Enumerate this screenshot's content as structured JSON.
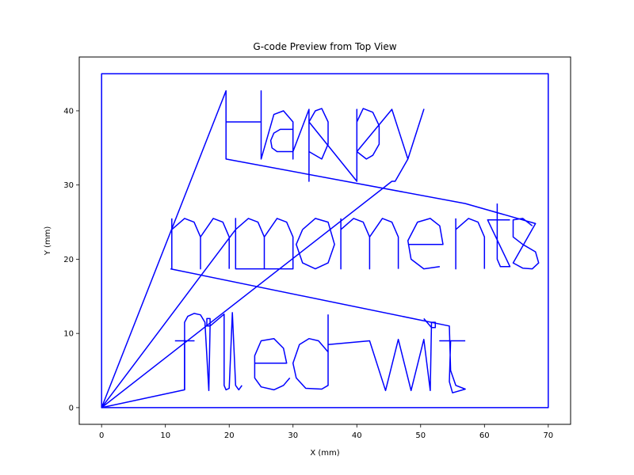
{
  "chart_data": {
    "type": "line",
    "title": "G-code Preview from Top View",
    "xlabel": "X (mm)",
    "ylabel": "Y (mm)",
    "xlim": [
      -3.5,
      73.5
    ],
    "ylim": [
      -2.25,
      47.25
    ],
    "xticks": [
      0,
      10,
      20,
      30,
      40,
      50,
      60,
      70
    ],
    "yticks": [
      0,
      10,
      20,
      30,
      40
    ],
    "grid": false,
    "legend": "none",
    "color": "#0000ff",
    "series": [
      {
        "values": [
          [
            0,
            0
          ],
          [
            0,
            45
          ],
          [
            70,
            45
          ],
          [
            70,
            0
          ],
          [
            0,
            0
          ],
          [
            19.5,
            42.7
          ],
          [
            19.5,
            33.5
          ],
          [
            19.5,
            38.5
          ],
          [
            25.0,
            38.5
          ],
          [
            25.0,
            42.7
          ],
          [
            25.0,
            33.5
          ],
          [
            27.0,
            39.5
          ],
          [
            28.5,
            40.0
          ],
          [
            30.0,
            38.5
          ],
          [
            30.0,
            33.5
          ],
          [
            30.0,
            37.5
          ],
          [
            28.0,
            37.5
          ],
          [
            27.0,
            37.0
          ],
          [
            26.5,
            36.0
          ],
          [
            26.7,
            35.0
          ],
          [
            27.5,
            34.5
          ],
          [
            30.0,
            34.5
          ],
          [
            32.5,
            40.2
          ],
          [
            32.5,
            30.5
          ],
          [
            32.5,
            34.5
          ],
          [
            34.5,
            33.5
          ],
          [
            35.5,
            35.5
          ],
          [
            35.5,
            38.5
          ],
          [
            34.5,
            40.3
          ],
          [
            33.5,
            40.0
          ],
          [
            32.5,
            38.5
          ],
          [
            40.0,
            30.5
          ],
          [
            40.0,
            40.2
          ],
          [
            40.0,
            38.5
          ],
          [
            41.0,
            40.3
          ],
          [
            42.5,
            39.8
          ],
          [
            43.5,
            38.0
          ],
          [
            43.5,
            35.5
          ],
          [
            42.5,
            34.0
          ],
          [
            41.5,
            33.5
          ],
          [
            40.0,
            34.5
          ],
          [
            45.5,
            40.2
          ],
          [
            48.0,
            33.5
          ],
          [
            50.5,
            40.2
          ],
          [
            48.0,
            33.5
          ],
          [
            46.0,
            30.5
          ],
          [
            45.5,
            30.5
          ],
          [
            0,
            0
          ],
          [
            21.0,
            24.0
          ],
          [
            23.0,
            25.5
          ],
          [
            24.5,
            25.0
          ],
          [
            25.5,
            23.0
          ],
          [
            25.5,
            18.7
          ],
          [
            25.5,
            23.0
          ],
          [
            27.5,
            25.5
          ],
          [
            29.0,
            25.0
          ],
          [
            30.0,
            23.0
          ],
          [
            30.0,
            18.7
          ],
          [
            21.0,
            18.7
          ],
          [
            21.0,
            25.5
          ],
          [
            21.0,
            18.7
          ]
        ]
      },
      {
        "values": [
          [
            11.0,
            25.5
          ],
          [
            11.0,
            18.7
          ],
          [
            11.0,
            24.0
          ],
          [
            13.0,
            25.5
          ],
          [
            14.5,
            25.0
          ],
          [
            15.5,
            23.0
          ],
          [
            15.5,
            18.7
          ],
          [
            15.5,
            23.0
          ],
          [
            17.5,
            25.5
          ],
          [
            19.0,
            25.0
          ],
          [
            20.0,
            23.0
          ],
          [
            20.0,
            18.7
          ]
        ]
      },
      {
        "values": [
          [
            31.5,
            24.0
          ],
          [
            33.5,
            25.5
          ],
          [
            35.5,
            25.0
          ],
          [
            36.5,
            22.0
          ],
          [
            35.5,
            19.5
          ],
          [
            33.5,
            18.7
          ],
          [
            31.5,
            19.5
          ],
          [
            30.5,
            22.0
          ],
          [
            31.5,
            24.0
          ]
        ]
      },
      {
        "values": [
          [
            37.5,
            25.5
          ],
          [
            37.5,
            18.7
          ],
          [
            37.5,
            24.0
          ],
          [
            39.5,
            25.5
          ],
          [
            41.0,
            25.0
          ],
          [
            42.0,
            23.0
          ],
          [
            42.0,
            18.7
          ],
          [
            42.0,
            23.0
          ],
          [
            44.0,
            25.5
          ],
          [
            45.5,
            25.0
          ],
          [
            46.5,
            23.0
          ],
          [
            46.5,
            18.7
          ]
        ]
      },
      {
        "values": [
          [
            48.0,
            22.0
          ],
          [
            53.5,
            22.0
          ],
          [
            53.0,
            24.5
          ],
          [
            51.5,
            25.5
          ],
          [
            49.5,
            25.0
          ],
          [
            48.0,
            22.5
          ],
          [
            48.5,
            20.0
          ],
          [
            50.5,
            18.7
          ],
          [
            53.0,
            19.0
          ]
        ]
      },
      {
        "values": [
          [
            55.5,
            25.5
          ],
          [
            55.5,
            18.7
          ],
          [
            55.5,
            24.0
          ],
          [
            57.5,
            25.5
          ],
          [
            59.0,
            25.0
          ],
          [
            60.0,
            23.0
          ],
          [
            60.0,
            18.7
          ]
        ]
      },
      {
        "values": [
          [
            62.0,
            27.5
          ],
          [
            62.0,
            20.0
          ],
          [
            62.5,
            19.0
          ],
          [
            64.0,
            19.0
          ],
          [
            60.5,
            25.3
          ],
          [
            64.0,
            25.3
          ]
        ]
      },
      {
        "values": [
          [
            67.5,
            24.5
          ],
          [
            66.0,
            25.5
          ],
          [
            64.5,
            25.3
          ],
          [
            64.5,
            23.0
          ],
          [
            66.0,
            22.0
          ],
          [
            68.0,
            21.0
          ],
          [
            68.5,
            19.5
          ],
          [
            67.5,
            18.7
          ],
          [
            66.0,
            18.8
          ],
          [
            64.5,
            19.5
          ],
          [
            68.0,
            24.8
          ],
          [
            57.0,
            27.5
          ],
          [
            19.5,
            33.5
          ]
        ]
      },
      {
        "values": [
          [
            10.8,
            18.7
          ],
          [
            54.5,
            11.0
          ],
          [
            54.7,
            5.0
          ],
          [
            55.5,
            3.0
          ],
          [
            57.0,
            2.5
          ],
          [
            55.0,
            2.0
          ],
          [
            54.5,
            3.5
          ],
          [
            54.7,
            9.0
          ],
          [
            53.0,
            9.0
          ],
          [
            57.0,
            9.0
          ]
        ]
      },
      {
        "values": [
          [
            13.0,
            2.4
          ],
          [
            13.0,
            11.5
          ],
          [
            13.5,
            12.3
          ],
          [
            14.5,
            12.7
          ],
          [
            15.5,
            12.5
          ],
          [
            16.2,
            11.5
          ],
          [
            16.8,
            2.3
          ],
          [
            17.0,
            11.0
          ],
          [
            17.0,
            12.0
          ],
          [
            16.5,
            12.0
          ],
          [
            16.5,
            11.0
          ],
          [
            17.0,
            11.0
          ],
          [
            19.2,
            12.6
          ],
          [
            19.2,
            3.0
          ],
          [
            19.5,
            2.4
          ],
          [
            20.0,
            2.6
          ],
          [
            20.5,
            12.8
          ],
          [
            21.0,
            3.0
          ],
          [
            21.5,
            2.4
          ],
          [
            22.0,
            3.0
          ]
        ]
      },
      {
        "values": [
          [
            11.5,
            9.0
          ],
          [
            14.5,
            9.0
          ],
          [
            13.0,
            9.0
          ],
          [
            13.0,
            2.4
          ],
          [
            0,
            0
          ]
        ]
      },
      {
        "values": [
          [
            24.0,
            6.0
          ],
          [
            29.0,
            6.0
          ],
          [
            28.5,
            8.0
          ],
          [
            27.0,
            9.3
          ],
          [
            25.0,
            9.0
          ],
          [
            24.0,
            7.0
          ],
          [
            24.0,
            4.0
          ],
          [
            25.0,
            2.8
          ],
          [
            27.0,
            2.4
          ],
          [
            28.5,
            3.0
          ],
          [
            29.5,
            4.0
          ]
        ]
      },
      {
        "values": [
          [
            35.5,
            3.0
          ],
          [
            35.5,
            12.5
          ],
          [
            35.5,
            3.0
          ],
          [
            34.5,
            2.5
          ],
          [
            32.0,
            2.6
          ],
          [
            30.5,
            4.0
          ],
          [
            30.0,
            6.0
          ],
          [
            31.0,
            8.5
          ],
          [
            32.5,
            9.3
          ],
          [
            34.0,
            9.0
          ],
          [
            35.5,
            7.5
          ]
        ]
      },
      {
        "values": [
          [
            35.5,
            8.5
          ],
          [
            42.0,
            9.0
          ],
          [
            44.5,
            2.3
          ],
          [
            46.5,
            9.2
          ],
          [
            48.5,
            2.3
          ],
          [
            50.5,
            9.2
          ],
          [
            51.5,
            2.3
          ],
          [
            51.7,
            11.5
          ],
          [
            52.3,
            11.5
          ],
          [
            52.3,
            10.8
          ],
          [
            51.7,
            10.8
          ],
          [
            50.5,
            12.0
          ]
        ]
      }
    ]
  }
}
